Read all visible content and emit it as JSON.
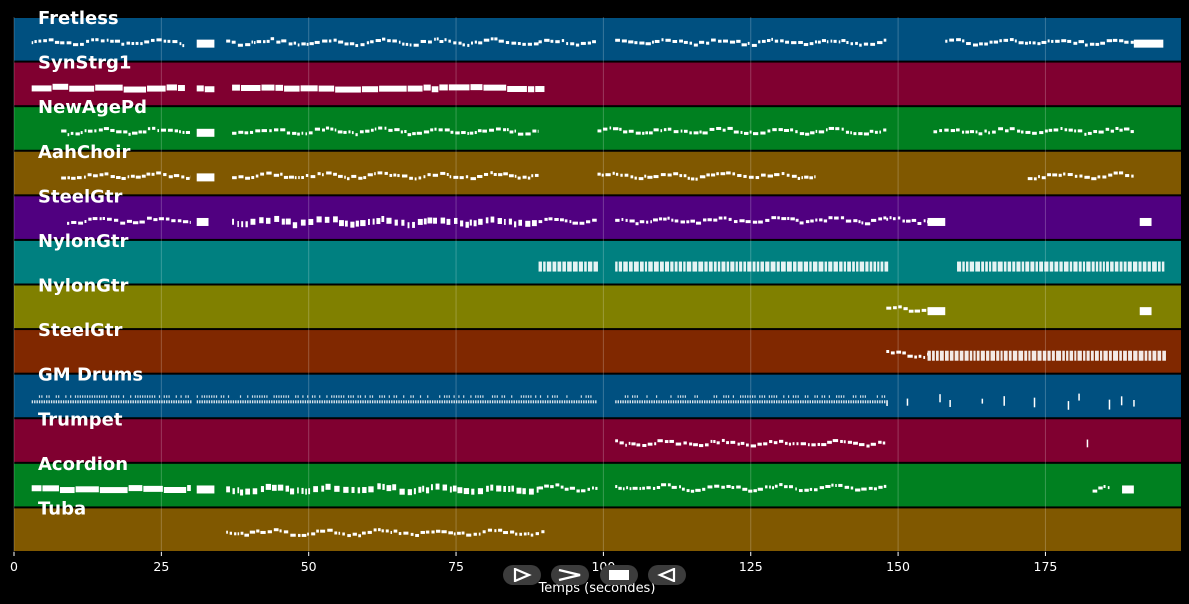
{
  "chart_data": {
    "type": "piano-roll",
    "title": "",
    "xlabel": "Temps (secondes)",
    "xlim": [
      0,
      198
    ],
    "xticks": [
      0,
      25,
      50,
      75,
      100,
      125,
      150,
      175
    ],
    "grid": true,
    "tracks": [
      {
        "name": "Fretless",
        "color": "#005080",
        "note_color": "#ffffff",
        "regions": [
          [
            3,
            29,
            "fine"
          ],
          [
            31,
            34,
            "block"
          ],
          [
            36,
            89,
            "fine"
          ],
          [
            89,
            99,
            "fine"
          ],
          [
            102,
            148,
            "fine"
          ],
          [
            158,
            168,
            "fine"
          ],
          [
            168,
            190,
            "fine"
          ],
          [
            190,
            195,
            "block"
          ]
        ]
      },
      {
        "name": "SynStrg1",
        "color": "#800030",
        "note_color": "#ffffff",
        "regions": [
          [
            3,
            29,
            "thick"
          ],
          [
            31,
            34,
            "thick"
          ],
          [
            37,
            90,
            "thick"
          ]
        ]
      },
      {
        "name": "NewAgePd",
        "color": "#008020",
        "note_color": "#ffffff",
        "regions": [
          [
            8,
            30,
            "fine"
          ],
          [
            31,
            34,
            "block"
          ],
          [
            37,
            89,
            "fine"
          ],
          [
            99,
            148,
            "fine"
          ],
          [
            156,
            190,
            "fine"
          ]
        ]
      },
      {
        "name": "AahChoir",
        "color": "#805800",
        "note_color": "#ffffff",
        "regions": [
          [
            8,
            30,
            "fine"
          ],
          [
            31,
            34,
            "block"
          ],
          [
            37,
            89,
            "fine"
          ],
          [
            99,
            136,
            "fine"
          ],
          [
            172,
            190,
            "fine"
          ]
        ]
      },
      {
        "name": "SteelGtr",
        "color": "#500080",
        "note_color": "#ffffff",
        "regions": [
          [
            9,
            30,
            "fine"
          ],
          [
            31,
            33,
            "block"
          ],
          [
            37,
            89,
            "tall"
          ],
          [
            89,
            99,
            "fine"
          ],
          [
            102,
            148,
            "fine"
          ],
          [
            148,
            155,
            "fine"
          ],
          [
            155,
            158,
            "block"
          ],
          [
            191,
            193,
            "block"
          ]
        ]
      },
      {
        "name": "NylonGtr",
        "color": "#008080",
        "note_color": "#ffffff",
        "regions": [
          [
            89,
            99,
            "dense"
          ],
          [
            102,
            148,
            "dense"
          ],
          [
            160,
            195,
            "dense"
          ]
        ]
      },
      {
        "name": "NylonGtr",
        "color": "#808000",
        "note_color": "#ffffff",
        "regions": [
          [
            148,
            155,
            "fine"
          ],
          [
            155,
            158,
            "block"
          ],
          [
            191,
            193,
            "block"
          ]
        ]
      },
      {
        "name": "SteelGtr",
        "color": "#802800",
        "note_color": "#ffffff",
        "regions": [
          [
            148,
            155,
            "fine"
          ],
          [
            155,
            195,
            "dense"
          ]
        ]
      },
      {
        "name": "GM Drums",
        "color": "#005080",
        "note_color": "#ffffff",
        "regions": [
          [
            3,
            30,
            "drums"
          ],
          [
            31,
            99,
            "drums"
          ],
          [
            102,
            148,
            "drums"
          ],
          [
            148,
            192,
            "sparse"
          ]
        ]
      },
      {
        "name": "Trumpet",
        "color": "#800030",
        "note_color": "#ffffff",
        "regions": [
          [
            102,
            148,
            "fine"
          ],
          [
            182,
            183,
            "sparse"
          ]
        ]
      },
      {
        "name": "Acordion",
        "color": "#008020",
        "note_color": "#ffffff",
        "regions": [
          [
            3,
            30,
            "thick"
          ],
          [
            31,
            34,
            "block"
          ],
          [
            36,
            89,
            "tall"
          ],
          [
            89,
            99,
            "fine"
          ],
          [
            102,
            148,
            "fine"
          ],
          [
            183,
            186,
            "fine"
          ],
          [
            188,
            190,
            "block"
          ]
        ]
      },
      {
        "name": "Tuba",
        "color": "#805800",
        "note_color": "#ffffff",
        "regions": [
          [
            36,
            90,
            "fine"
          ]
        ]
      }
    ]
  },
  "controls": [
    {
      "name": "play-icon"
    },
    {
      "name": "forward-icon"
    },
    {
      "name": "stop-icon"
    },
    {
      "name": "rewind-icon"
    }
  ]
}
